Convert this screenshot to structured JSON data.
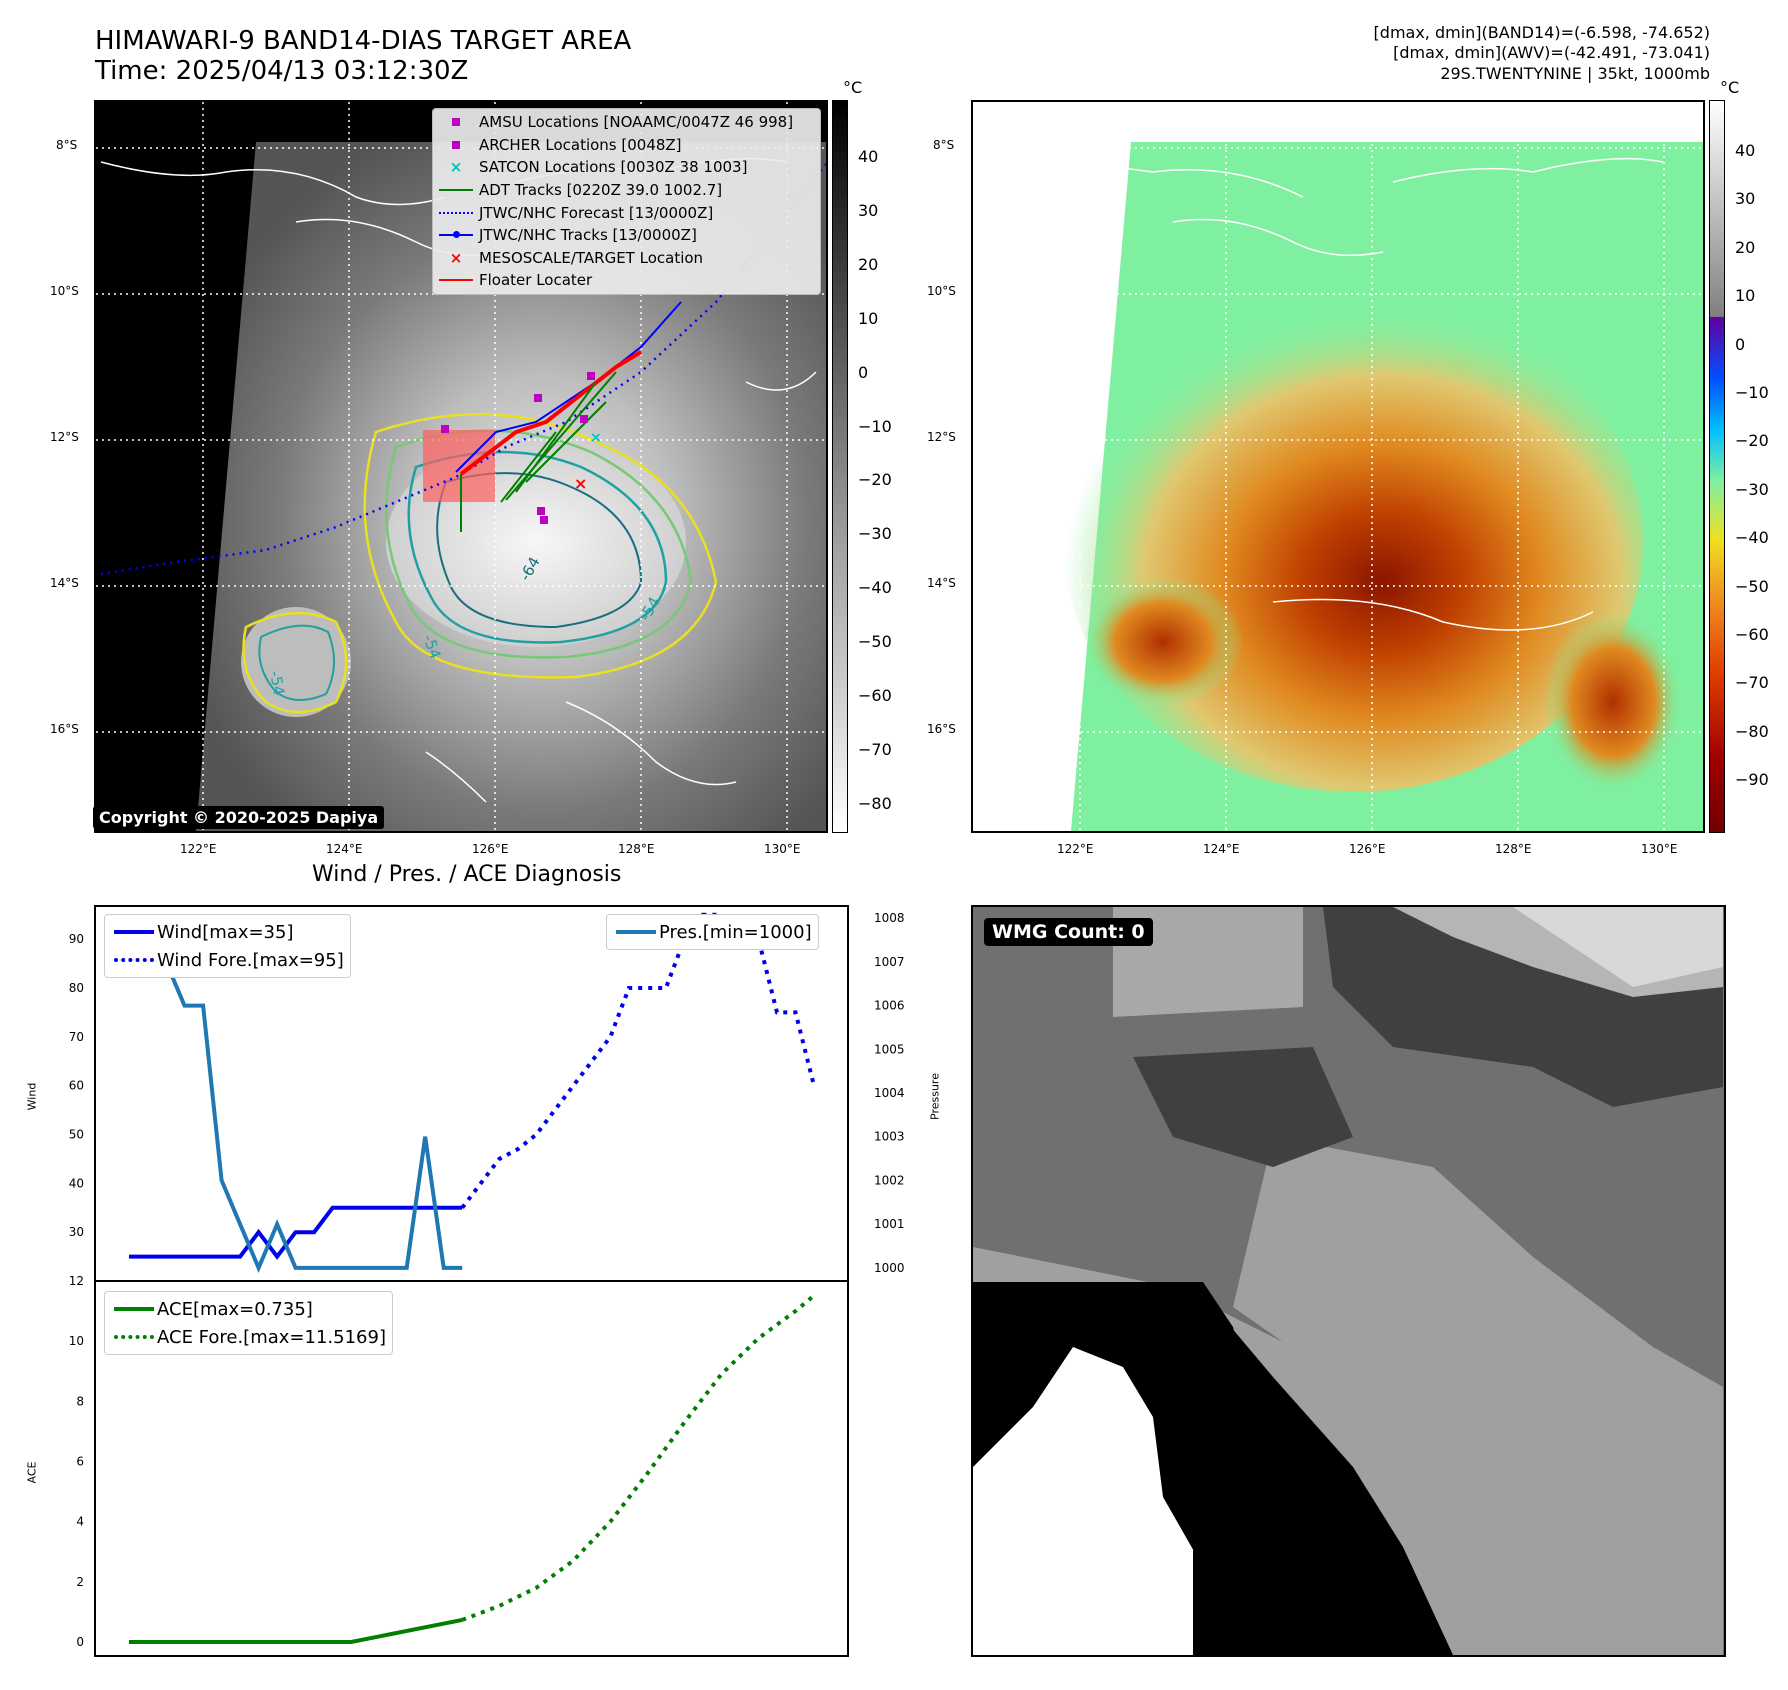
{
  "header": {
    "title_line1": "HIMAWARI-9 BAND14-DIAS TARGET AREA",
    "title_line2": "Time: 2025/04/13 03:12:30Z",
    "info_line1": "[dmax, dmin](BAND14)=(-6.598, -74.652)",
    "info_line2": "[dmax, dmin](AWV)=(-42.491, -73.041)",
    "info_line3": "29S.TWENTYNINE | 35kt, 1000mb"
  },
  "map": {
    "lat_labels": [
      "8°S",
      "10°S",
      "12°S",
      "14°S",
      "16°S"
    ],
    "lon_labels": [
      "122°E",
      "124°E",
      "126°E",
      "128°E",
      "130°E"
    ],
    "contour_labels": [
      "-64",
      "-54",
      "-54",
      "-54"
    ],
    "copyright": "Copyright © 2020-2025 Dapiya",
    "legend": [
      {
        "label": "AMSU Locations [NOAAMC/0047Z 46 998]",
        "color": "#c000c0",
        "marker": "square"
      },
      {
        "label": "ARCHER Locations [0048Z]",
        "color": "#c000c0",
        "marker": "square"
      },
      {
        "label": "SATCON Locations [0030Z 38 1003]",
        "color": "#00c0c0",
        "marker": "x"
      },
      {
        "label": "ADT Tracks [0220Z 39.0 1002.7]",
        "color": "#008000",
        "marker": "line"
      },
      {
        "label": "JTWC/NHC Forecast [13/0000Z]",
        "color": "#0000ff",
        "marker": "dotted"
      },
      {
        "label": "JTWC/NHC Tracks [13/0000Z]",
        "color": "#0000ff",
        "marker": "line-dot"
      },
      {
        "label": "MESOSCALE/TARGET Location",
        "color": "#ff0000",
        "marker": "x"
      },
      {
        "label": "Floater Locater",
        "color": "#ff0000",
        "marker": "line"
      }
    ]
  },
  "colorbar_left": {
    "unit": "°C",
    "ticks": [
      "40",
      "30",
      "20",
      "10",
      "0",
      "−10",
      "−20",
      "−30",
      "−40",
      "−50",
      "−60",
      "−70",
      "−80"
    ]
  },
  "colorbar_right": {
    "unit": "°C",
    "ticks": [
      "40",
      "30",
      "20",
      "10",
      "0",
      "−10",
      "−20",
      "−30",
      "−40",
      "−50",
      "−60",
      "−70",
      "−80",
      "−90"
    ]
  },
  "diagnosis": {
    "title": "Wind / Pres. / ACE Diagnosis",
    "wind_axis_label": "Wind",
    "pressure_axis_label": "Pressure",
    "ace_axis_label": "ACE",
    "wind_legend": "Wind[max=35]",
    "wind_fore_legend": "Wind Fore.[max=95]",
    "pres_legend": "Pres.[min=1000]",
    "ace_legend": "ACE[max=0.735]",
    "ace_fore_legend": "ACE Fore.[max=11.5169]",
    "wind_ticks": [
      "90",
      "80",
      "70",
      "60",
      "50",
      "40",
      "30"
    ],
    "pressure_ticks": [
      "1008",
      "1007",
      "1006",
      "1005",
      "1004",
      "1003",
      "1002",
      "1001",
      "1000"
    ],
    "ace_ticks": [
      "12",
      "10",
      "8",
      "6",
      "4",
      "2",
      "0"
    ],
    "wind_color": "#0000ee",
    "pres_color": "#1f77b4",
    "ace_color": "#007f00"
  },
  "wmg": {
    "label": "WMG Count: 0"
  },
  "chart_data": [
    {
      "type": "line",
      "title": "Wind / Pres. / ACE Diagnosis",
      "ylabel": "Wind",
      "ylim": [
        20,
        97
      ],
      "series": [
        {
          "name": "Wind[max=35]",
          "x": [
            0,
            1,
            2,
            3,
            4,
            5,
            6,
            7,
            8,
            9,
            10,
            11,
            12,
            13,
            14,
            15,
            16,
            17,
            18
          ],
          "values": [
            25,
            25,
            25,
            25,
            25,
            25,
            25,
            30,
            25,
            30,
            30,
            35,
            35,
            35,
            35,
            35,
            35,
            35,
            35
          ]
        },
        {
          "name": "Wind Fore.[max=95]",
          "x": [
            18,
            19,
            20,
            21,
            22,
            23,
            24,
            25,
            26,
            27,
            28,
            29,
            30,
            31,
            32,
            33,
            34,
            35,
            36,
            37
          ],
          "values": [
            35,
            40,
            45,
            47,
            50,
            55,
            60,
            65,
            70,
            80,
            80,
            80,
            90,
            95,
            95,
            90,
            90,
            75,
            75,
            60
          ]
        }
      ]
    },
    {
      "type": "line",
      "ylabel": "Pressure",
      "ylim": [
        999.7,
        1008.3
      ],
      "series": [
        {
          "name": "Pres.[min=1000]",
          "x": [
            0,
            1,
            2,
            3,
            4,
            5,
            6,
            7,
            8,
            9,
            10,
            11,
            12,
            13,
            14,
            15,
            16,
            17,
            18
          ],
          "values": [
            1008,
            1007,
            1007,
            1006,
            1006,
            1002,
            1001,
            1000,
            1001,
            1000,
            1000,
            1000,
            1000,
            1000,
            1000,
            1000,
            1003,
            1000,
            1000
          ]
        }
      ]
    },
    {
      "type": "line",
      "ylabel": "ACE",
      "ylim": [
        -0.5,
        12
      ],
      "series": [
        {
          "name": "ACE[max=0.735]",
          "x": [
            0,
            4,
            8,
            12,
            18
          ],
          "values": [
            0,
            0,
            0,
            0,
            0.735
          ]
        },
        {
          "name": "ACE Fore.[max=11.5169]",
          "x": [
            18,
            20,
            22,
            24,
            26,
            28,
            30,
            32,
            34,
            36,
            37
          ],
          "values": [
            0.735,
            1.2,
            1.8,
            2.7,
            4.0,
            5.6,
            7.3,
            8.9,
            10.1,
            11.0,
            11.5169
          ]
        }
      ]
    }
  ]
}
